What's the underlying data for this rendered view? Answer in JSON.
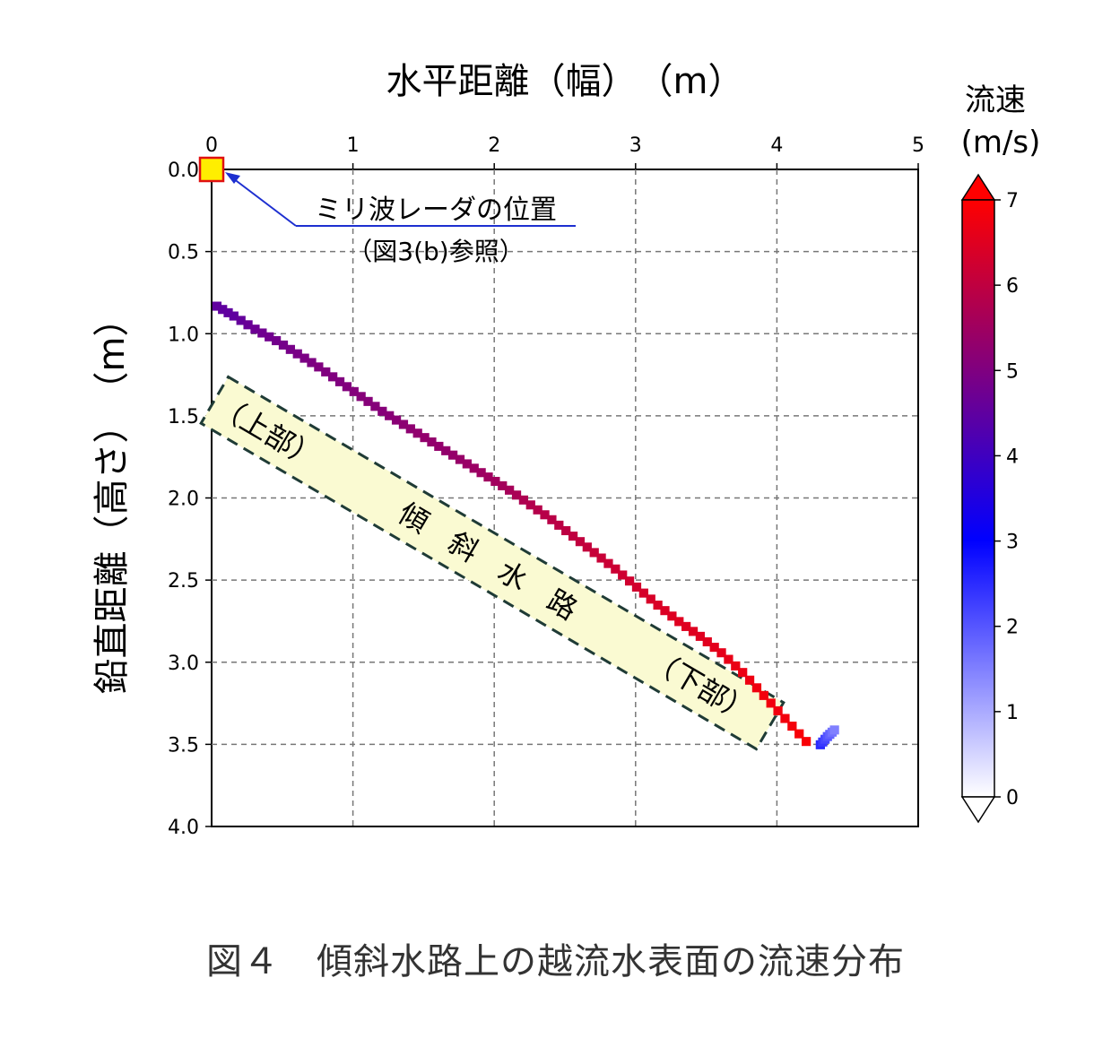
{
  "caption": "図４　傾斜水路上の越流水表面の流速分布",
  "chart_data": {
    "type": "heatmap",
    "xlabel": "水平距離（幅）　（m）",
    "ylabel": "鉛直距離（高さ）　（m）",
    "xlim": [
      0,
      5
    ],
    "ylim": [
      4.0,
      0.0
    ],
    "y_inverted": true,
    "x_axis_position": "top",
    "xticks": [
      "0",
      "1",
      "2",
      "3",
      "4",
      "5"
    ],
    "yticks": [
      "0.0",
      "0.5",
      "1.0",
      "1.5",
      "2.0",
      "2.5",
      "3.0",
      "3.5",
      "4.0"
    ],
    "grid": true,
    "colorbar": {
      "title_line1": "流速",
      "title_line2": "(m/s)",
      "min": 0,
      "max": 7,
      "ticks": [
        "0",
        "1",
        "2",
        "3",
        "4",
        "5",
        "6",
        "7"
      ],
      "colors": [
        "#ffffff",
        "#0000ff",
        "#ff0000"
      ],
      "extend": "both"
    },
    "radar": {
      "x": 0.0,
      "y": 0.0,
      "label": "ミリ波レーダの位置",
      "sublabel": "（図3(b)参照）"
    },
    "channel_band": {
      "label_top": "（上部）",
      "label_middle": "傾　斜　水　路",
      "label_bottom": "（下部）"
    },
    "series": [
      {
        "x": [
          0.03,
          0.15,
          0.3,
          0.45,
          0.6,
          0.75,
          0.9,
          1.05,
          1.2,
          1.35,
          1.5,
          1.65,
          1.8,
          1.95,
          2.1,
          2.25,
          2.4,
          2.55,
          2.7,
          2.85,
          3.0,
          3.15,
          3.3,
          3.45,
          3.6,
          3.75,
          3.9,
          4.05,
          4.2
        ],
        "y": [
          0.83,
          0.89,
          0.97,
          1.04,
          1.12,
          1.2,
          1.29,
          1.38,
          1.47,
          1.55,
          1.63,
          1.71,
          1.79,
          1.87,
          1.95,
          2.04,
          2.13,
          2.23,
          2.33,
          2.43,
          2.54,
          2.65,
          2.75,
          2.84,
          2.94,
          3.06,
          3.2,
          3.34,
          3.48
        ],
        "speed": [
          4.5,
          4.5,
          4.7,
          4.8,
          4.9,
          5.0,
          5.0,
          5.1,
          5.1,
          5.2,
          5.3,
          5.3,
          5.4,
          5.5,
          5.6,
          5.8,
          5.9,
          6.0,
          6.1,
          6.2,
          6.3,
          6.4,
          6.5,
          6.5,
          6.6,
          6.7,
          6.8,
          6.8,
          6.9
        ]
      },
      {
        "x": [
          4.3,
          4.35,
          4.4
        ],
        "y": [
          3.5,
          3.45,
          3.41
        ],
        "speed": [
          2.5,
          2.0,
          1.5
        ]
      }
    ]
  }
}
